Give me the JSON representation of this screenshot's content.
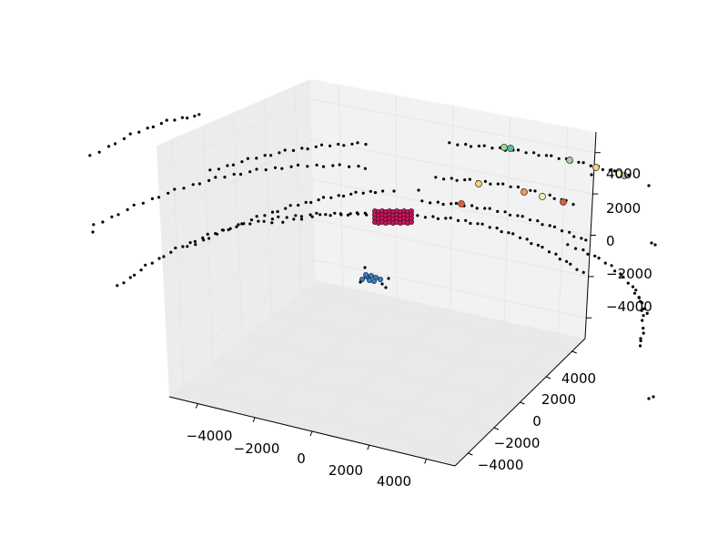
{
  "chart_data": {
    "type": "scatter3d",
    "title": "",
    "xlabel": "",
    "ylabel": "",
    "zlabel": "",
    "grid": true,
    "xticks": [
      "−4000",
      "−2000",
      "0",
      "2000",
      "4000"
    ],
    "yticks": [
      "−4000",
      "−2000",
      "0",
      "2000",
      "4000"
    ],
    "zticks": [
      "−4000",
      "−2000",
      "0",
      "2000",
      "4000"
    ],
    "pane_color": "#f2f2f2",
    "grid_color": "#e6e6e6",
    "clusters": [
      {
        "kind": "dense-block",
        "color": "#c2185b",
        "edge": "#5a0a2b"
      },
      {
        "kind": "small-cluster",
        "color": "#3a7fc1",
        "edge": "#1a2f55"
      },
      {
        "kind": "markers",
        "colors": [
          "#5bbf9b",
          "#9ed59b",
          "#f5f3a8",
          "#fbd17e",
          "#f59a5c",
          "#e9593f",
          "#ffffbf",
          "#66c2a5"
        ]
      }
    ],
    "background_points_color": "#000000"
  }
}
